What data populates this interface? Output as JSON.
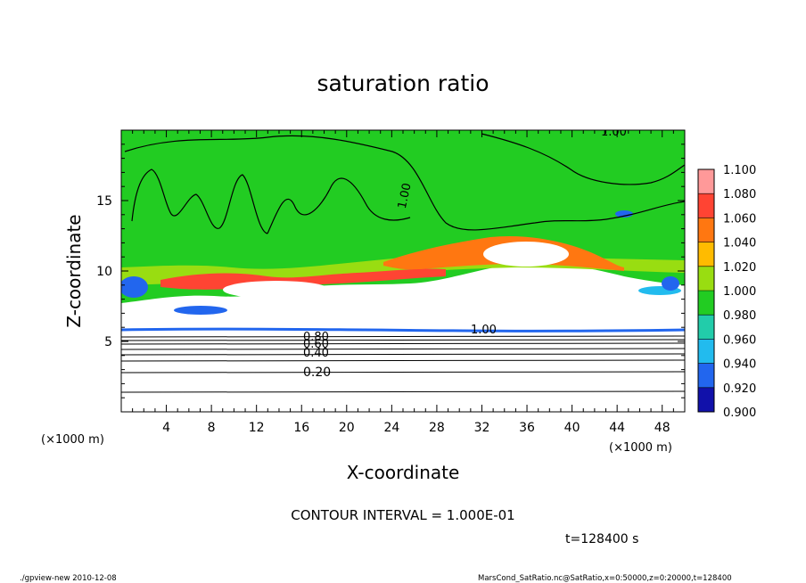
{
  "chart_data": {
    "type": "heatmap",
    "title": "saturation ratio",
    "xlabel": "X-coordinate",
    "ylabel": "Z-coordinate",
    "x_unit": "(×1000 m)",
    "z_unit": "(×1000 m)",
    "xlim": [
      0,
      50
    ],
    "ylim": [
      0,
      20
    ],
    "x_ticks": [
      "4",
      "8",
      "12",
      "16",
      "20",
      "24",
      "28",
      "32",
      "36",
      "40",
      "44",
      "48"
    ],
    "y_ticks": [
      "5",
      "10",
      "15"
    ],
    "colorbar": {
      "labels": [
        "1.100",
        "1.080",
        "1.060",
        "1.040",
        "1.020",
        "1.000",
        "0.980",
        "0.960",
        "0.940",
        "0.920",
        "0.900"
      ],
      "colors": [
        "#ff9999",
        "#ff4433",
        "#ff7711",
        "#ffbb00",
        "#99dd11",
        "#22cc22",
        "#22ccaa",
        "#22bbee",
        "#2266ee",
        "#1111aa",
        "#7711bb"
      ]
    },
    "contour_labels": [
      "1.00",
      "1.00",
      "1.00",
      "0.80",
      "0.60",
      "0.40",
      "0.20"
    ],
    "contour_interval_text": "CONTOUR INTERVAL = 1.000E-01",
    "time_text": "t=128400  s"
  },
  "footer": {
    "left": "./gpview-new   2010-12-08",
    "right": "MarsCond_SatRatio.nc@SatRatio,x=0:50000,z=0:20000,t=128400"
  },
  "colors": {
    "green": "#22cc22",
    "white": "#ffffff",
    "red": "#ff4433",
    "orange": "#ff7711",
    "yellow_green": "#99dd11",
    "blue": "#2266ee",
    "cyan": "#22bbee"
  }
}
